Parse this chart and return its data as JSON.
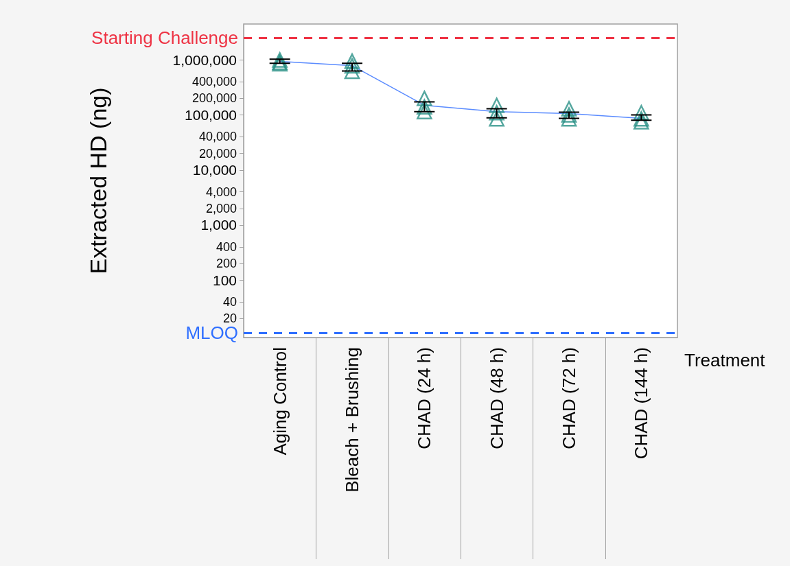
{
  "chart_data": {
    "type": "scatter",
    "xlabel": "Treatment",
    "ylabel": "Extracted HD (ng)",
    "categories": [
      "Aging Control",
      "Bleach + Brushing",
      "CHAD (24 h)",
      "CHAD (48 h)",
      "CHAD (72 h)",
      "CHAD (144 h)"
    ],
    "log": "y",
    "ylim": [
      9,
      4500000
    ],
    "yticks": [
      20,
      40,
      100,
      200,
      400,
      {
        "value": 1000,
        "label": "1,000"
      },
      {
        "value": 2000,
        "label": "2,000"
      },
      {
        "value": 4000,
        "label": "4,000"
      },
      {
        "value": 10000,
        "label": "10,000"
      },
      {
        "value": 20000,
        "label": "20,000"
      },
      {
        "value": 40000,
        "label": "40,000"
      },
      {
        "value": 100000,
        "label": "100,000"
      },
      {
        "value": 200000,
        "label": "200,000"
      },
      {
        "value": 400000,
        "label": "400,000"
      },
      {
        "value": 1000000,
        "label": "1,000,000"
      }
    ],
    "grid": false,
    "series": [
      {
        "type": "line",
        "color": "#5b8cff",
        "marker": "none",
        "values": [
          940000,
          790000,
          150000,
          115000,
          106000,
          87000
        ],
        "errors": [
          [
            870000,
            1030000
          ],
          [
            630000,
            870000
          ],
          [
            115000,
            173000
          ],
          [
            89000,
            130000
          ],
          [
            87000,
            112000
          ],
          [
            80000,
            100000
          ]
        ]
      },
      {
        "color": "#2a9187",
        "marker": "triangle",
        "x": [
          "Aging Control",
          "Aging Control",
          "Aging Control",
          "Bleach + Brushing",
          "Bleach + Brushing",
          "Bleach + Brushing",
          "CHAD (24 h)",
          "CHAD (24 h)",
          "CHAD (24 h)",
          "CHAD (48 h)",
          "CHAD (48 h)",
          "CHAD (48 h)",
          "CHAD (72 h)",
          "CHAD (72 h)",
          "CHAD (72 h)",
          "CHAD (144 h)",
          "CHAD (144 h)",
          "CHAD (144 h)"
        ],
        "values": [
          1000000,
          900000,
          850000,
          950000,
          780000,
          620000,
          200000,
          140000,
          115000,
          150000,
          110000,
          85000,
          130000,
          100000,
          85000,
          110000,
          85000,
          75000
        ]
      }
    ],
    "ref_lines": [
      {
        "axis": "y",
        "value": 2500000,
        "label": "Starting Challenge",
        "color": "#ee3344",
        "line_style": "dashed"
      },
      {
        "axis": "y",
        "value": 11,
        "label": "MLOQ",
        "color": "#2f6fff",
        "line_style": "dashed"
      }
    ]
  }
}
